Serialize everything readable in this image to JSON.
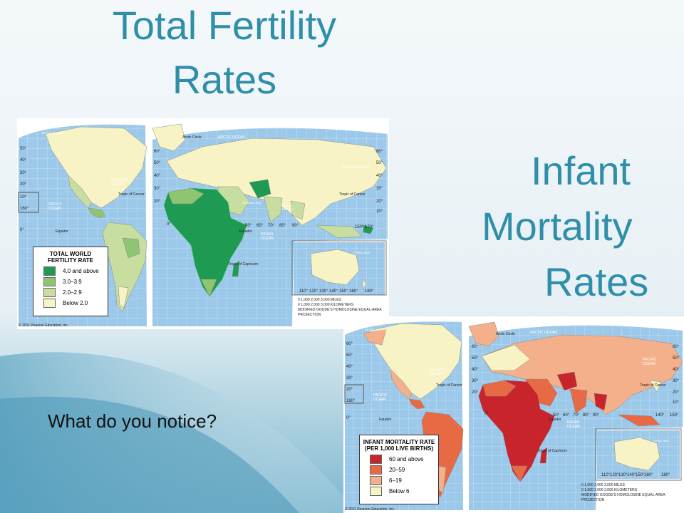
{
  "slide": {
    "title_line1": "Total Fertility",
    "title_line2": "Rates",
    "infant_line1": "Infant",
    "infant_line2": "Mortality",
    "infant_line3": "Rates",
    "question": "What do you notice?",
    "accent_color": "#2f8fa8"
  },
  "fertility_map": {
    "legend_title_1": "TOTAL WORLD",
    "legend_title_2": "FERTILITY RATE",
    "legend": [
      {
        "label": "4.0 and above",
        "color": "#1f9a52"
      },
      {
        "label": "3.0–3.9",
        "color": "#8fc472"
      },
      {
        "label": "2.0–2.9",
        "color": "#c7dea0"
      },
      {
        "label": "Below 2.0",
        "color": "#f7f3c4"
      }
    ],
    "labels": {
      "arctic_ocean": "ARCTIC OCEAN",
      "arctic_circle": "Arctic Circle",
      "atlantic_ocean": "ATLANTIC OCEAN",
      "pacific_ocean": "PACIFIC OCEAN",
      "tropic_cancer": "Tropic of Cancer",
      "tropic_capricorn": "Tropic of Capricorn",
      "equator": "Equator",
      "indian_ocean": "INDIAN OCEAN",
      "arabian_sea": "ARABIAN SEA",
      "bay_bengal": "BAY OF BENGAL",
      "coral_sea": "CORAL SEA"
    },
    "scale_miles": "0   1,000   2,000   3,000 MILES",
    "scale_km": "0  1,000  2,000  3,000 KILOMETERS",
    "projection": "MODIFIED GOODE'S HOMOLOSINE EQUAL-AREA PROJECTION",
    "credit": "© 2011 Pearson Education, Inc."
  },
  "mortality_map": {
    "legend_title_1": "INFANT MORTALITY RATE",
    "legend_title_2": "(PER 1,000 LIVE BIRTHS)",
    "legend": [
      {
        "label": "60 and above",
        "color": "#c8242b"
      },
      {
        "label": "20–59",
        "color": "#e86a44"
      },
      {
        "label": "6–19",
        "color": "#f4b08a"
      },
      {
        "label": "Below 6",
        "color": "#f7f3c4"
      }
    ],
    "labels": {
      "arctic_ocean": "ARCTIC OCEAN",
      "arctic_circle": "Arctic Circle",
      "atlantic_ocean": "ATLANTIC OCEAN",
      "pacific_ocean": "PACIFIC OCEAN",
      "tropic_cancer": "Tropic of Cancer",
      "tropic_capricorn": "Tropic of Capricorn",
      "equator": "Equator",
      "indian_ocean": "INDIAN OCEAN",
      "coral_sea": "CORAL SEA"
    },
    "scale_miles": "0   1,000   2,000   3,000 MILES",
    "scale_km": "0  1,000  2,000  3,000 KILOMETERS",
    "projection": "MODIFIED GOODE'S HOMOLOSINE EQUAL-AREA PROJECTION",
    "credit": "© 2011 Pearson Education, Inc."
  }
}
